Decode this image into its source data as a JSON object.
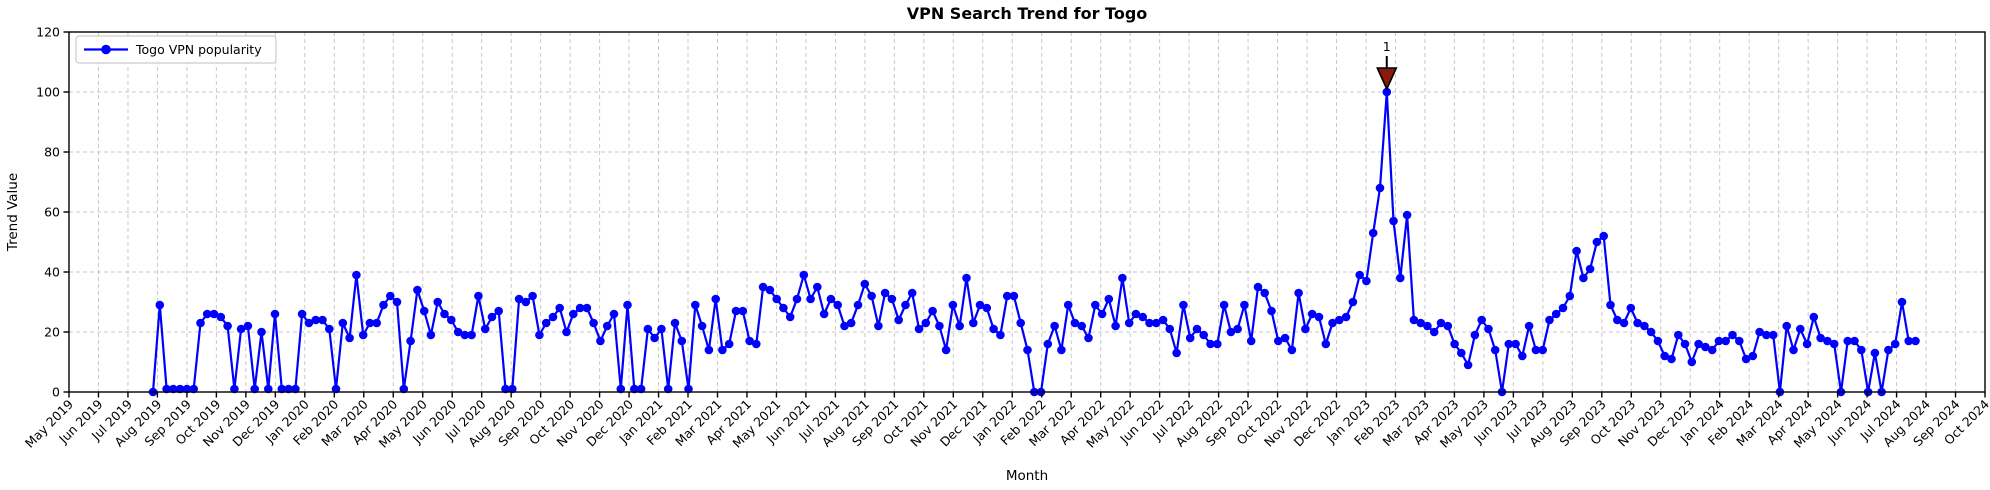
{
  "title": "VPN Search Trend for Togo",
  "xlabel": "Month",
  "ylabel": "Trend Value",
  "legend": {
    "label": "Togo VPN popularity",
    "position": "upper left"
  },
  "annotation": {
    "label": "1"
  },
  "colors": {
    "line": "#0000ff",
    "marker": "#0000ff",
    "grid": "#c9c9c9",
    "spine": "#000000",
    "annotation": "#8b1a0e",
    "annotation_edge": "#000000",
    "background": "#ffffff",
    "legend_border": "#cccccc"
  },
  "chart_data": {
    "type": "line",
    "title": "VPN Search Trend for Togo",
    "xlabel": "Month",
    "ylabel": "Trend Value",
    "grid": true,
    "legend_position": "upper left",
    "ylim": [
      0,
      120
    ],
    "y_ticks": [
      0,
      20,
      40,
      60,
      80,
      100,
      120
    ],
    "x_tick_labels": [
      "May 2019",
      "Jun 2019",
      "Jul 2019",
      "Aug 2019",
      "Sep 2019",
      "Oct 2019",
      "Nov 2019",
      "Dec 2019",
      "Jan 2020",
      "Feb 2020",
      "Mar 2020",
      "Apr 2020",
      "May 2020",
      "Jun 2020",
      "Jul 2020",
      "Aug 2020",
      "Sep 2020",
      "Oct 2020",
      "Nov 2020",
      "Dec 2020",
      "Jan 2021",
      "Feb 2021",
      "Mar 2021",
      "Apr 2021",
      "May 2021",
      "Jun 2021",
      "Jul 2021",
      "Aug 2021",
      "Sep 2021",
      "Oct 2021",
      "Nov 2021",
      "Dec 2021",
      "Jan 2022",
      "Feb 2022",
      "Mar 2022",
      "Apr 2022",
      "May 2022",
      "Jun 2022",
      "Jul 2022",
      "Aug 2022",
      "Sep 2022",
      "Oct 2022",
      "Nov 2022",
      "Dec 2022",
      "Jan 2023",
      "Feb 2023",
      "Mar 2023",
      "Apr 2023",
      "May 2023",
      "Jun 2023",
      "Jul 2023",
      "Aug 2023",
      "Sep 2023",
      "Oct 2023",
      "Nov 2023",
      "Dec 2023",
      "Jan 2024",
      "Feb 2024",
      "Mar 2024",
      "Apr 2024",
      "May 2024",
      "Jun 2024",
      "Jul 2024",
      "Aug 2024",
      "Sep 2024",
      "Oct 2024"
    ],
    "series": [
      {
        "name": "Togo VPN popularity",
        "color": "#0000ff",
        "marker": "circle",
        "frequency": "weekly",
        "start_date": "2019-07-28",
        "x_offset_months": 2.85,
        "values": [
          0,
          29,
          1,
          1,
          1,
          1,
          1,
          23,
          26,
          26,
          25,
          22,
          1,
          21,
          22,
          1,
          20,
          1,
          26,
          1,
          1,
          1,
          26,
          23,
          24,
          24,
          21,
          1,
          23,
          18,
          39,
          19,
          23,
          23,
          29,
          32,
          30,
          1,
          17,
          34,
          27,
          19,
          30,
          26,
          24,
          20,
          19,
          19,
          32,
          21,
          25,
          27,
          1,
          1,
          31,
          30,
          32,
          19,
          23,
          25,
          28,
          20,
          26,
          28,
          28,
          23,
          17,
          22,
          26,
          1,
          29,
          1,
          1,
          21,
          18,
          21,
          1,
          23,
          17,
          1,
          29,
          22,
          14,
          31,
          14,
          16,
          27,
          27,
          17,
          16,
          35,
          34,
          31,
          28,
          25,
          31,
          39,
          31,
          35,
          26,
          31,
          29,
          22,
          23,
          29,
          36,
          32,
          22,
          33,
          31,
          24,
          29,
          33,
          21,
          23,
          27,
          22,
          14,
          29,
          22,
          38,
          23,
          29,
          28,
          21,
          19,
          32,
          32,
          23,
          14,
          0,
          0,
          16,
          22,
          14,
          29,
          23,
          22,
          18,
          29,
          26,
          31,
          22,
          38,
          23,
          26,
          25,
          23,
          23,
          24,
          21,
          13,
          29,
          18,
          21,
          19,
          16,
          16,
          29,
          20,
          21,
          29,
          17,
          35,
          33,
          27,
          17,
          18,
          14,
          33,
          21,
          26,
          25,
          16,
          23,
          24,
          25,
          30,
          39,
          37,
          53,
          68,
          100,
          57,
          38,
          59,
          24,
          23,
          22,
          20,
          23,
          22,
          16,
          13,
          9,
          19,
          24,
          21,
          14,
          0,
          16,
          16,
          12,
          22,
          14,
          14,
          24,
          26,
          28,
          32,
          47,
          38,
          41,
          50,
          52,
          29,
          24,
          23,
          28,
          23,
          22,
          20,
          17,
          12,
          11,
          19,
          16,
          10,
          16,
          15,
          14,
          17,
          17,
          19,
          17,
          11,
          12,
          20,
          19,
          19,
          0,
          22,
          14,
          21,
          16,
          25,
          18,
          17,
          16,
          0,
          17,
          17,
          14,
          0,
          13,
          0,
          14,
          16,
          30,
          17,
          17
        ]
      }
    ],
    "annotations": [
      {
        "text": "1",
        "series": "Togo VPN popularity",
        "point_index": 182,
        "value": 100,
        "marker": "triangle-down",
        "color": "#8b1a0e"
      }
    ]
  }
}
